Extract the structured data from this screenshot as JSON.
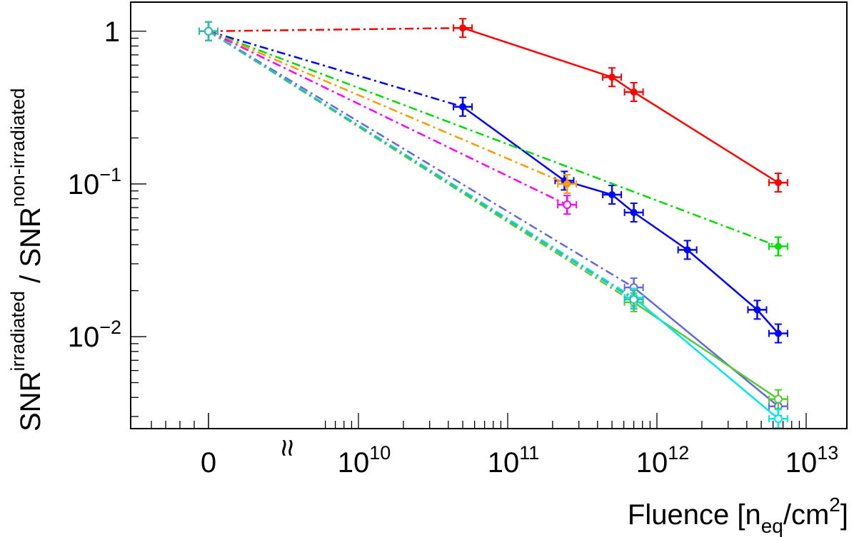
{
  "chart_data": {
    "type": "line",
    "title": "",
    "xlabel": {
      "main": "Fluence [n",
      "sub": "eq",
      "mid": "/cm",
      "sup": "2",
      "end": "]"
    },
    "ylabel": {
      "a": "SNR",
      "a_sup": "irradiated",
      "sep": " / ",
      "b": "SNR",
      "b_sup": "non-irradiated"
    },
    "x_scale": "broken-log",
    "x_break_symbol": "≈",
    "x_ticks": [
      {
        "value": 0,
        "label": "0"
      },
      {
        "value": 10000000000.0,
        "base": "10",
        "exp": "10"
      },
      {
        "value": 100000000000.0,
        "base": "10",
        "exp": "11"
      },
      {
        "value": 1000000000000.0,
        "base": "10",
        "exp": "12"
      },
      {
        "value": 10000000000000.0,
        "base": "10",
        "exp": "13"
      }
    ],
    "y_scale": "log",
    "ylim": [
      0.0025,
      1.55
    ],
    "y_ticks": [
      {
        "value": 1,
        "label": "1"
      },
      {
        "value": 0.1,
        "base": "10",
        "exp": "−1"
      },
      {
        "value": 0.01,
        "base": "10",
        "exp": "−2"
      }
    ],
    "series": [
      {
        "name": "red",
        "color": "#ff0000",
        "marker": "filled",
        "x": [
          0,
          50000000000.0,
          500000000000.0,
          700000000000.0,
          6500000000000.0
        ],
        "y": [
          1.0,
          1.05,
          0.5,
          0.4,
          0.102
        ]
      },
      {
        "name": "blue",
        "color": "#0000ff",
        "marker": "filled",
        "x": [
          0,
          50000000000.0,
          240000000000.0,
          500000000000.0,
          700000000000.0,
          1600000000000.0,
          4700000000000.0,
          6500000000000.0
        ],
        "y": [
          1.0,
          0.32,
          0.105,
          0.085,
          0.065,
          0.037,
          0.015,
          0.0105
        ]
      },
      {
        "name": "green",
        "color": "#00dd00",
        "marker": "filled",
        "x": [
          0,
          6500000000000.0
        ],
        "y": [
          1.0,
          0.039
        ]
      },
      {
        "name": "orange",
        "color": "#ff9900",
        "marker": "filled",
        "x": [
          0,
          250000000000.0
        ],
        "y": [
          1.0,
          0.1
        ]
      },
      {
        "name": "magenta",
        "color": "#ff00ff",
        "marker": "open",
        "x": [
          0,
          250000000000.0
        ],
        "y": [
          1.0,
          0.073
        ]
      },
      {
        "name": "slate",
        "color": "#6666dd",
        "marker": "open",
        "x": [
          0,
          700000000000.0,
          6500000000000.0
        ],
        "y": [
          1.0,
          0.021,
          0.0035
        ]
      },
      {
        "name": "lime",
        "color": "#55cc33",
        "marker": "open",
        "x": [
          0,
          700000000000.0,
          6500000000000.0
        ],
        "y": [
          1.0,
          0.0168,
          0.0039
        ]
      },
      {
        "name": "cyan",
        "color": "#00e5ee",
        "marker": "open",
        "x": [
          0,
          700000000000.0,
          6500000000000.0
        ],
        "y": [
          1.0,
          0.018,
          0.0029
        ]
      },
      {
        "name": "teal",
        "color": "#33bbaa",
        "marker": "open",
        "x": [
          0,
          700000000000.0
        ],
        "y": [
          1.0,
          0.0175
        ]
      }
    ]
  }
}
